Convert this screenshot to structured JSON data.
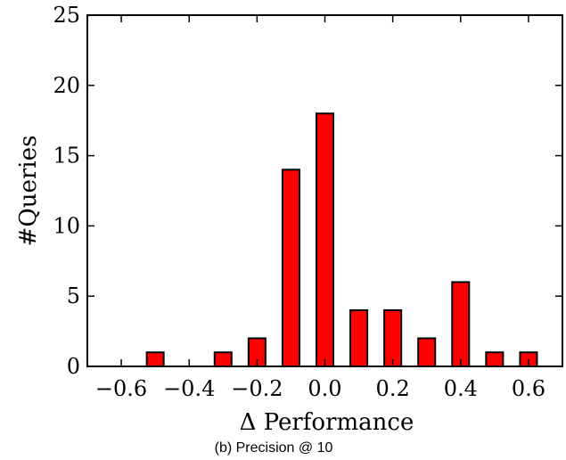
{
  "chart_data": {
    "type": "bar",
    "title": "",
    "xlabel": "Δ Performance",
    "ylabel": "#Queries",
    "caption": "(b) Precision @ 10",
    "xlim": [
      -0.7,
      0.7
    ],
    "ylim": [
      0,
      25
    ],
    "xticks": [
      -0.6,
      -0.4,
      -0.2,
      0.0,
      0.2,
      0.4,
      0.6
    ],
    "xtick_labels": [
      "−0.6",
      "−0.4",
      "−0.2",
      "0.0",
      "0.2",
      "0.4",
      "0.6"
    ],
    "yticks": [
      0,
      5,
      10,
      15,
      20,
      25
    ],
    "ytick_labels": [
      "0",
      "5",
      "10",
      "15",
      "20",
      "25"
    ],
    "grid": false,
    "bar_color": "#ff0000",
    "bar_edge_color": "#000000",
    "bar_width": 0.05,
    "bars": [
      {
        "x": -0.5,
        "value": 1
      },
      {
        "x": -0.3,
        "value": 1
      },
      {
        "x": -0.2,
        "value": 2
      },
      {
        "x": -0.1,
        "value": 14
      },
      {
        "x": 0.0,
        "value": 18
      },
      {
        "x": 0.1,
        "value": 4
      },
      {
        "x": 0.2,
        "value": 4
      },
      {
        "x": 0.3,
        "value": 2
      },
      {
        "x": 0.4,
        "value": 6
      },
      {
        "x": 0.5,
        "value": 1
      },
      {
        "x": 0.6,
        "value": 1
      }
    ]
  }
}
